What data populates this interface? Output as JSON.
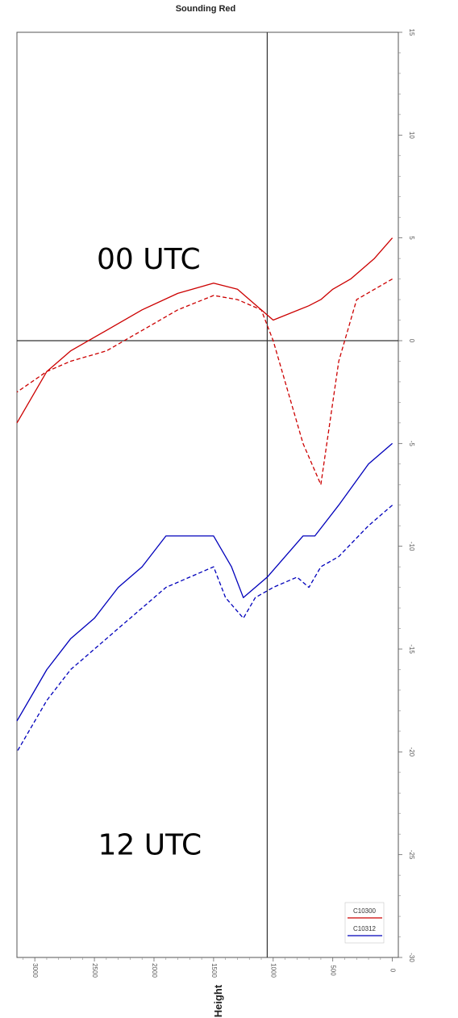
{
  "chart_data": {
    "type": "line",
    "title": "Sounding Red",
    "xlabel": "",
    "ylabel": "Height",
    "xlim": [
      -30,
      15
    ],
    "ylim": [
      -50,
      3150
    ],
    "x_ticks": [
      -30,
      -25,
      -20,
      -15,
      -10,
      -5,
      0,
      5,
      10,
      15
    ],
    "y_ticks": [
      0,
      500,
      1000,
      1500,
      2000,
      2500,
      3000
    ],
    "reference_lines": {
      "x": 0,
      "y": 1050
    },
    "annotations": [
      {
        "text": "12 UTC",
        "x": -25,
        "y": 2470
      },
      {
        "text": "00 UTC",
        "x": 3.5,
        "y": 2480
      }
    ],
    "legend": {
      "position": "bottom-right",
      "entries": [
        "C10300",
        "C10312"
      ]
    },
    "series": [
      {
        "name": "C10300",
        "color": "#cc0000",
        "style": "solid",
        "points": [
          [
            5,
            0
          ],
          [
            4,
            150
          ],
          [
            3,
            350
          ],
          [
            2.5,
            500
          ],
          [
            2,
            600
          ],
          [
            1.7,
            700
          ],
          [
            1,
            1000
          ],
          [
            1.5,
            1100
          ],
          [
            2.5,
            1300
          ],
          [
            2.8,
            1500
          ],
          [
            2.3,
            1800
          ],
          [
            1.5,
            2100
          ],
          [
            0.5,
            2400
          ],
          [
            -0.5,
            2700
          ],
          [
            -1.5,
            2900
          ],
          [
            -4,
            3150
          ]
        ]
      },
      {
        "name": "C10300",
        "color": "#cc0000",
        "style": "dashed",
        "points": [
          [
            3,
            0
          ],
          [
            2.5,
            150
          ],
          [
            2,
            300
          ],
          [
            -1,
            450
          ],
          [
            -7,
            600
          ],
          [
            -5,
            750
          ],
          [
            -2,
            900
          ],
          [
            0,
            1000
          ],
          [
            1.5,
            1100
          ],
          [
            2,
            1300
          ],
          [
            2.2,
            1500
          ],
          [
            1.5,
            1800
          ],
          [
            0.5,
            2100
          ],
          [
            -0.5,
            2400
          ],
          [
            -1,
            2700
          ],
          [
            -1.5,
            2900
          ],
          [
            -2.5,
            3150
          ]
        ]
      },
      {
        "name": "C10312",
        "color": "#0000bb",
        "style": "solid",
        "points": [
          [
            -5,
            0
          ],
          [
            -6,
            200
          ],
          [
            -8,
            450
          ],
          [
            -9.5,
            650
          ],
          [
            -9.5,
            750
          ],
          [
            -10.5,
            900
          ],
          [
            -11.5,
            1050
          ],
          [
            -12.5,
            1250
          ],
          [
            -11,
            1350
          ],
          [
            -9.5,
            1500
          ],
          [
            -9.5,
            1700
          ],
          [
            -9.5,
            1900
          ],
          [
            -11,
            2100
          ],
          [
            -12,
            2300
          ],
          [
            -13.5,
            2500
          ],
          [
            -14.5,
            2700
          ],
          [
            -16,
            2900
          ],
          [
            -18.5,
            3150
          ]
        ]
      },
      {
        "name": "C10312",
        "color": "#0000bb",
        "style": "dashed",
        "points": [
          [
            -8,
            0
          ],
          [
            -9,
            200
          ],
          [
            -10.5,
            450
          ],
          [
            -11,
            600
          ],
          [
            -12,
            700
          ],
          [
            -11.5,
            800
          ],
          [
            -12,
            1000
          ],
          [
            -12.5,
            1150
          ],
          [
            -13.5,
            1250
          ],
          [
            -12.5,
            1400
          ],
          [
            -11,
            1500
          ],
          [
            -11.5,
            1700
          ],
          [
            -12,
            1900
          ],
          [
            -13,
            2100
          ],
          [
            -14,
            2300
          ],
          [
            -15,
            2500
          ],
          [
            -16,
            2700
          ],
          [
            -17.5,
            2900
          ],
          [
            -20,
            3150
          ]
        ]
      }
    ]
  }
}
